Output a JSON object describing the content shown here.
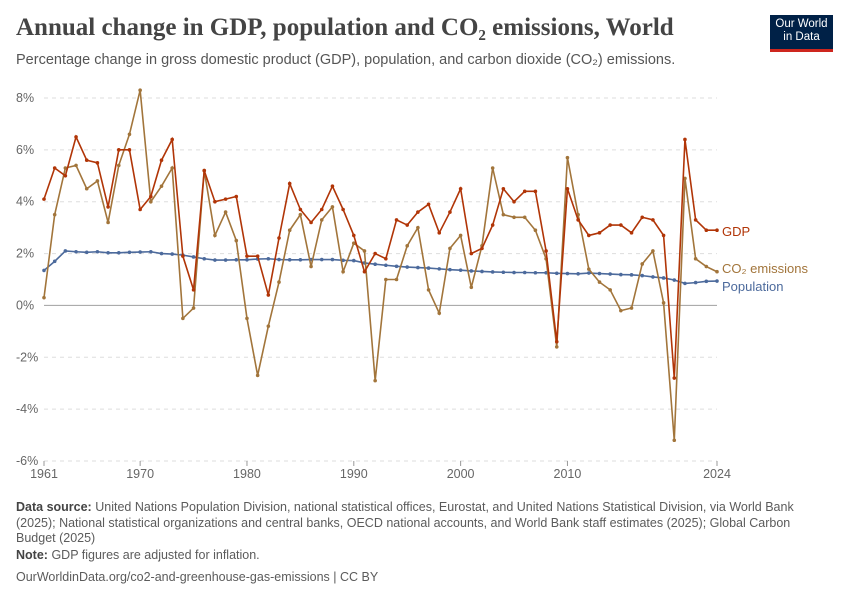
{
  "header": {
    "title": "Annual change in GDP, population and CO₂ emissions, World",
    "subtitle": "Percentage change in gross domestic product (GDP), population, and carbon dioxide (CO₂) emissions.",
    "logo": "Our World in Data"
  },
  "chart_data": {
    "type": "line",
    "title": "Annual change in GDP, population and CO₂ emissions, World",
    "x": [
      1961,
      1962,
      1963,
      1964,
      1965,
      1966,
      1967,
      1968,
      1969,
      1970,
      1971,
      1972,
      1973,
      1974,
      1975,
      1976,
      1977,
      1978,
      1979,
      1980,
      1981,
      1982,
      1983,
      1984,
      1985,
      1986,
      1987,
      1988,
      1989,
      1990,
      1991,
      1992,
      1993,
      1994,
      1995,
      1996,
      1997,
      1998,
      1999,
      2000,
      2001,
      2002,
      2003,
      2004,
      2005,
      2006,
      2007,
      2008,
      2009,
      2010,
      2011,
      2012,
      2013,
      2014,
      2015,
      2016,
      2017,
      2018,
      2019,
      2020,
      2021,
      2022,
      2023,
      2024
    ],
    "xticks": [
      "1961",
      "1970",
      "1980",
      "1990",
      "2000",
      "2010",
      "2024"
    ],
    "yticks": [
      "8%",
      "6%",
      "4%",
      "2%",
      "0%",
      "-2%",
      "-4%",
      "-6%"
    ],
    "ylim": [
      -6,
      8
    ],
    "grid": true,
    "legend": "right-inline",
    "series": [
      {
        "name": "GDP",
        "color": "#b13507",
        "values": [
          4.1,
          5.3,
          5.0,
          6.5,
          5.6,
          5.5,
          3.8,
          6.0,
          6.0,
          3.7,
          4.2,
          5.6,
          6.4,
          1.9,
          0.6,
          5.2,
          4.0,
          4.1,
          4.2,
          1.9,
          1.9,
          0.4,
          2.6,
          4.7,
          3.7,
          3.2,
          3.7,
          4.6,
          3.7,
          2.7,
          1.3,
          2.0,
          1.8,
          3.3,
          3.1,
          3.6,
          3.9,
          2.8,
          3.6,
          4.5,
          2.0,
          2.2,
          3.1,
          4.5,
          4.0,
          4.4,
          4.4,
          2.1,
          -1.4,
          4.5,
          3.3,
          2.7,
          2.8,
          3.1,
          3.1,
          2.8,
          3.4,
          3.3,
          2.7,
          -2.8,
          6.4,
          3.3,
          2.9,
          2.9
        ]
      },
      {
        "name": "CO₂ emissions",
        "color": "#a2753b",
        "values": [
          0.3,
          3.5,
          5.3,
          5.4,
          4.5,
          4.8,
          3.2,
          5.4,
          6.6,
          8.3,
          4.0,
          4.6,
          5.3,
          -0.5,
          -0.1,
          5.2,
          2.7,
          3.6,
          2.5,
          -0.5,
          -2.7,
          -0.8,
          0.9,
          2.9,
          3.5,
          1.5,
          3.3,
          3.8,
          1.3,
          2.4,
          2.1,
          -2.9,
          1.0,
          1.0,
          2.3,
          3.0,
          0.6,
          -0.3,
          2.2,
          2.7,
          0.7,
          2.3,
          5.3,
          3.5,
          3.4,
          3.4,
          2.9,
          1.8,
          -1.6,
          5.7,
          3.5,
          1.4,
          0.9,
          0.6,
          -0.2,
          -0.1,
          1.6,
          2.1,
          0.1,
          -5.2,
          4.9,
          1.8,
          1.5,
          1.3
        ]
      },
      {
        "name": "Population",
        "color": "#4c6a9c",
        "values": [
          1.35,
          1.7,
          2.1,
          2.07,
          2.05,
          2.07,
          2.03,
          2.03,
          2.05,
          2.06,
          2.07,
          2.0,
          1.98,
          1.94,
          1.87,
          1.8,
          1.75,
          1.75,
          1.76,
          1.76,
          1.79,
          1.8,
          1.77,
          1.76,
          1.76,
          1.77,
          1.77,
          1.77,
          1.74,
          1.73,
          1.64,
          1.59,
          1.55,
          1.51,
          1.48,
          1.46,
          1.44,
          1.41,
          1.38,
          1.36,
          1.33,
          1.31,
          1.29,
          1.28,
          1.27,
          1.27,
          1.26,
          1.26,
          1.24,
          1.23,
          1.22,
          1.25,
          1.23,
          1.21,
          1.19,
          1.18,
          1.15,
          1.1,
          1.06,
          0.98,
          0.85,
          0.88,
          0.93,
          0.94
        ]
      }
    ]
  },
  "footer": {
    "source_label": "Data source:",
    "source_text": "United Nations Population Division, national statistical offices, Eurostat, and United Nations Statistical Division, via World Bank (2025); National statistical organizations and central banks, OECD national accounts, and World Bank staff estimates (2025); Global Carbon Budget (2025)",
    "note_label": "Note:",
    "note_text": "GDP figures are adjusted for inflation.",
    "url": "OurWorldinData.org/co2-and-greenhouse-gas-emissions | CC BY"
  }
}
